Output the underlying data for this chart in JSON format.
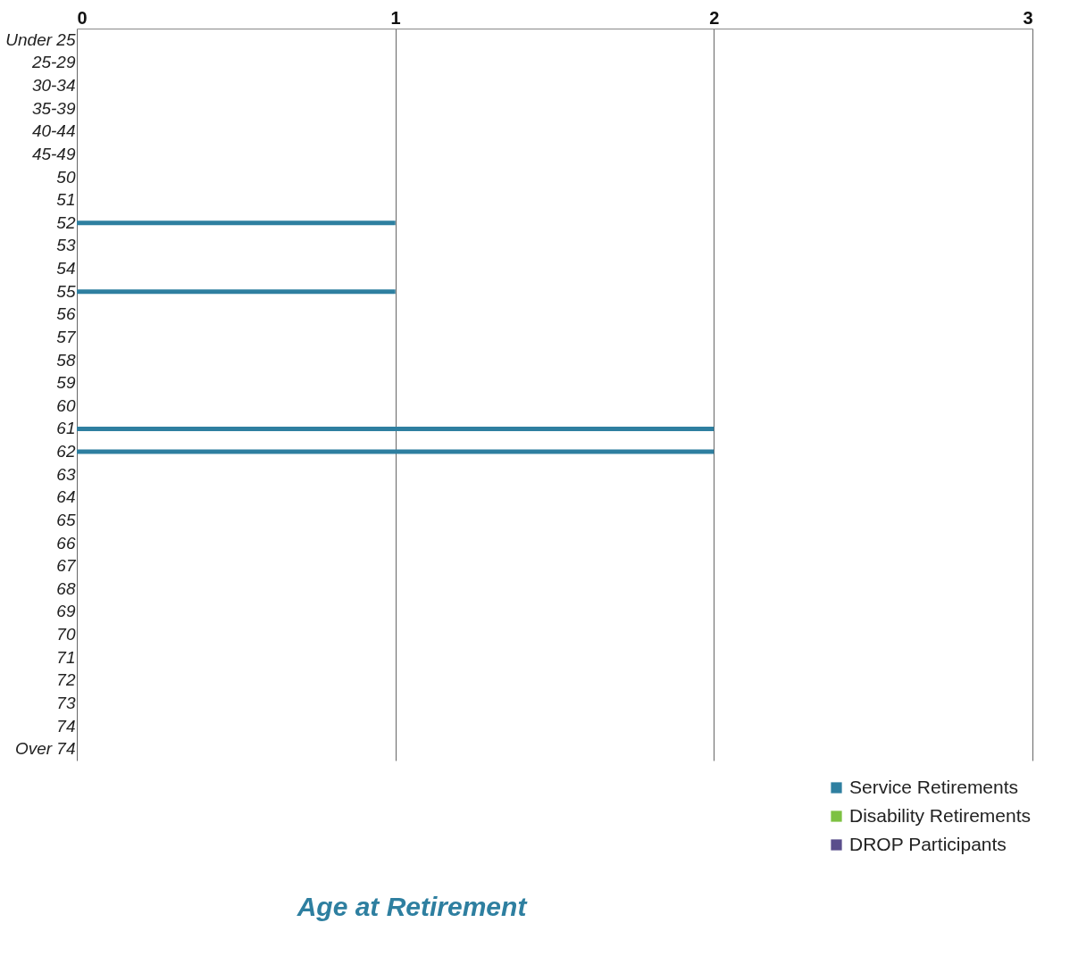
{
  "chart_data": {
    "type": "bar",
    "orientation": "horizontal",
    "title": "Age at Retirement",
    "categories": [
      "Under 25",
      "25-29",
      "30-34",
      "35-39",
      "40-44",
      "45-49",
      "50",
      "51",
      "52",
      "53",
      "54",
      "55",
      "56",
      "57",
      "58",
      "59",
      "60",
      "61",
      "62",
      "63",
      "64",
      "65",
      "66",
      "67",
      "68",
      "69",
      "70",
      "71",
      "72",
      "73",
      "74",
      "Over 74"
    ],
    "series": [
      {
        "name": "Service Retirements",
        "color": "#2e7fa0",
        "values": [
          0,
          0,
          0,
          0,
          0,
          0,
          0,
          0,
          1,
          0,
          0,
          1,
          0,
          0,
          0,
          0,
          0,
          2,
          2,
          0,
          0,
          0,
          0,
          0,
          0,
          0,
          0,
          0,
          0,
          0,
          0,
          0
        ]
      },
      {
        "name": "Disability Retirements",
        "color": "#7dc142",
        "values": [
          0,
          0,
          0,
          0,
          0,
          0,
          0,
          0,
          0,
          0,
          0,
          0,
          0,
          0,
          0,
          0,
          0,
          0,
          0,
          0,
          0,
          0,
          0,
          0,
          0,
          0,
          0,
          0,
          0,
          0,
          0,
          0
        ]
      },
      {
        "name": "DROP Participants",
        "color": "#5a4e8c",
        "values": [
          0,
          0,
          0,
          0,
          0,
          0,
          0,
          0,
          0,
          0,
          0,
          0,
          0,
          0,
          0,
          0,
          0,
          0,
          0,
          0,
          0,
          0,
          0,
          0,
          0,
          0,
          0,
          0,
          0,
          0,
          0,
          0
        ]
      }
    ],
    "xlim": [
      0,
      3
    ],
    "xticks": [
      0,
      1,
      2,
      3
    ],
    "grid": "x",
    "legend": "bottom right"
  }
}
